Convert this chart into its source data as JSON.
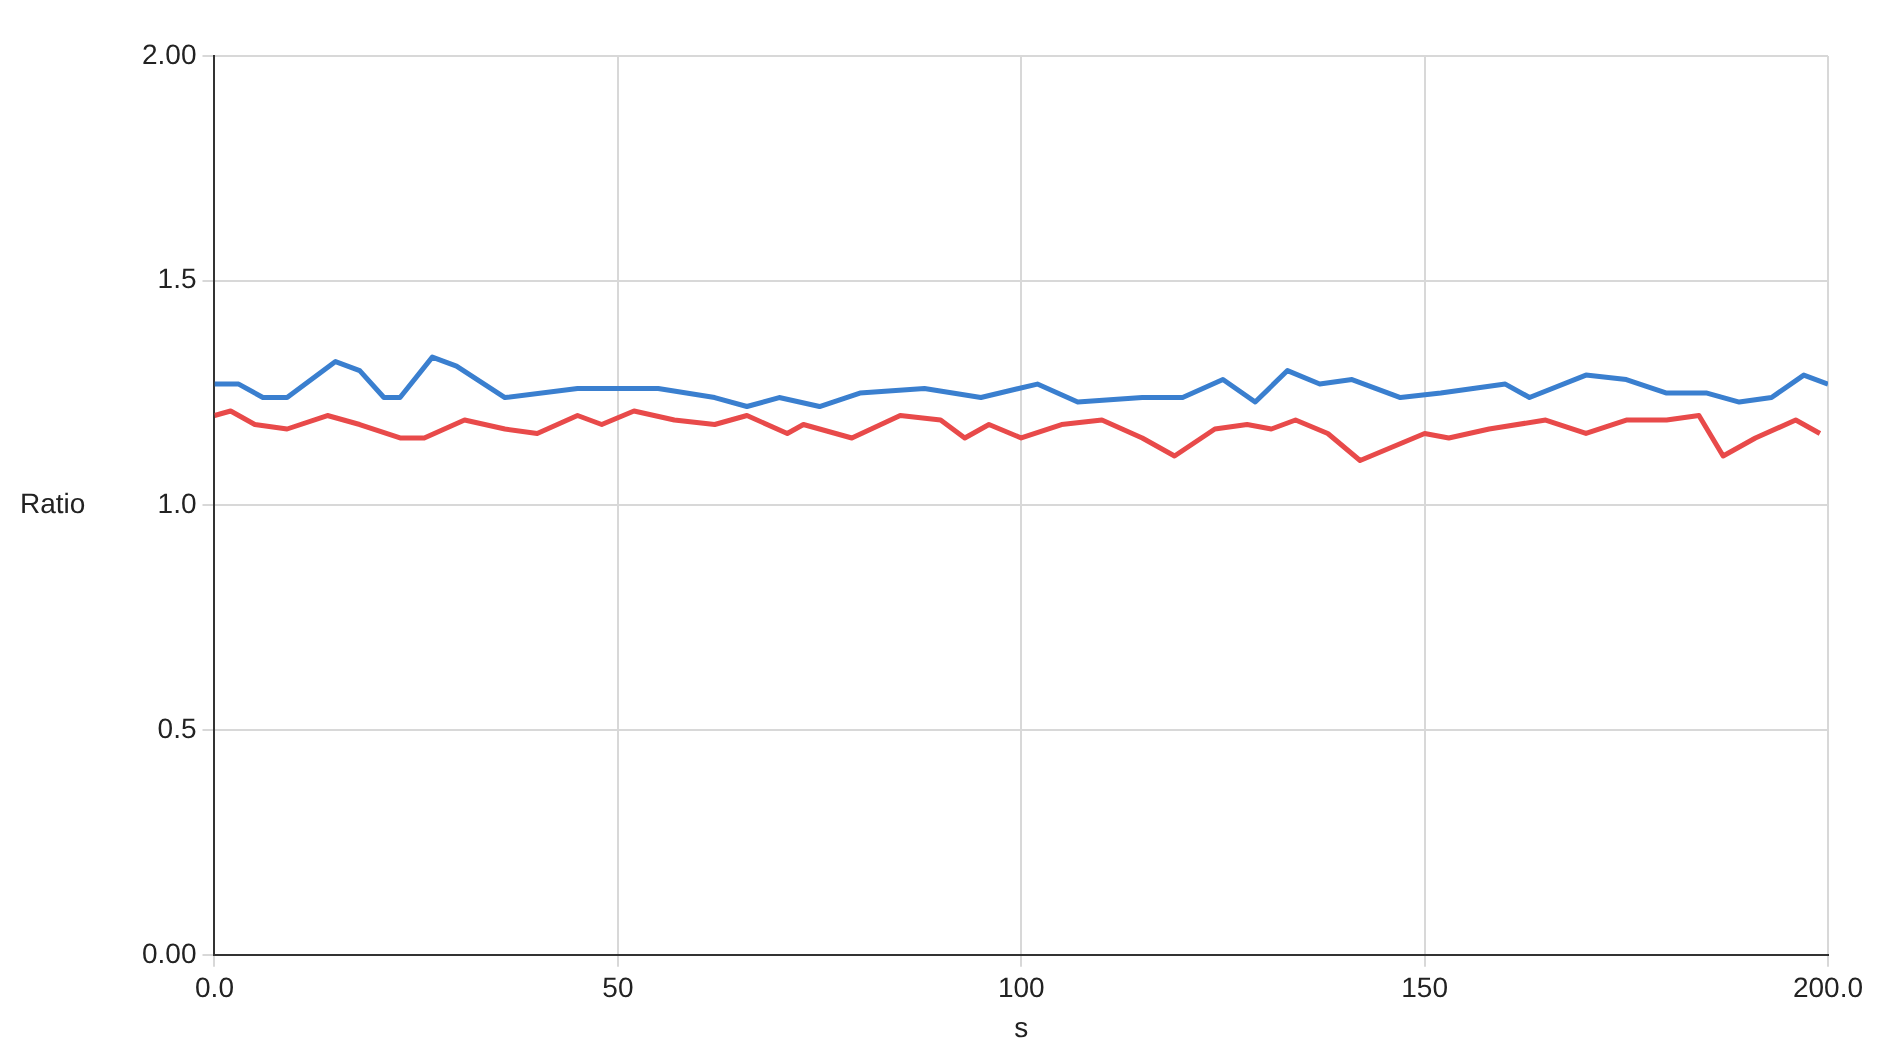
{
  "chart_data": {
    "type": "line",
    "xlabel": "s",
    "ylabel": "Ratio",
    "xlim": [
      0,
      200
    ],
    "ylim": [
      0,
      2
    ],
    "xticks": [
      {
        "value": 0,
        "label": "0.0"
      },
      50,
      100,
      150,
      {
        "value": 200,
        "label": "200.0"
      }
    ],
    "yticks": [
      {
        "value": 0,
        "label": "0.00"
      },
      {
        "value": 0.5,
        "label": "0.5"
      },
      {
        "value": 1,
        "label": "1.0"
      },
      {
        "value": 1.5,
        "label": "1.5"
      },
      {
        "value": 2,
        "label": "2.00"
      }
    ],
    "grid": true,
    "legend": false,
    "marker": "none",
    "line_style": "solid",
    "series": [
      {
        "color": "#3a7fcf",
        "x": [
          0,
          3,
          6,
          9,
          15,
          18,
          21,
          23,
          27,
          30,
          36,
          45,
          55,
          62,
          66,
          70,
          75,
          80,
          88,
          95,
          102,
          107,
          115,
          120,
          125,
          129,
          133,
          137,
          141,
          147,
          152,
          160,
          163,
          170,
          175,
          180,
          185,
          189,
          193,
          197,
          200
        ],
        "values": [
          1.27,
          1.27,
          1.24,
          1.24,
          1.32,
          1.3,
          1.24,
          1.24,
          1.33,
          1.31,
          1.24,
          1.26,
          1.26,
          1.24,
          1.22,
          1.24,
          1.22,
          1.25,
          1.26,
          1.24,
          1.27,
          1.23,
          1.24,
          1.24,
          1.28,
          1.23,
          1.3,
          1.27,
          1.28,
          1.24,
          1.25,
          1.27,
          1.24,
          1.29,
          1.28,
          1.25,
          1.25,
          1.23,
          1.24,
          1.29,
          1.27
        ]
      },
      {
        "color": "#e84a4a",
        "x": [
          0,
          2,
          5,
          9,
          14,
          18,
          23,
          26,
          31,
          36,
          40,
          45,
          48,
          52,
          57,
          62,
          66,
          71,
          73,
          79,
          85,
          90,
          93,
          96,
          100,
          105,
          110,
          115,
          119,
          124,
          128,
          131,
          134,
          138,
          142,
          146,
          150,
          153,
          158,
          165,
          170,
          175,
          180,
          184,
          187,
          191,
          196,
          199
        ],
        "values": [
          1.2,
          1.21,
          1.18,
          1.17,
          1.2,
          1.18,
          1.15,
          1.15,
          1.19,
          1.17,
          1.16,
          1.2,
          1.18,
          1.21,
          1.19,
          1.18,
          1.2,
          1.16,
          1.18,
          1.15,
          1.2,
          1.19,
          1.15,
          1.18,
          1.15,
          1.18,
          1.19,
          1.15,
          1.11,
          1.17,
          1.18,
          1.17,
          1.19,
          1.16,
          1.1,
          1.13,
          1.16,
          1.15,
          1.17,
          1.19,
          1.16,
          1.19,
          1.19,
          1.2,
          1.11,
          1.15,
          1.19,
          1.16
        ]
      }
    ]
  }
}
